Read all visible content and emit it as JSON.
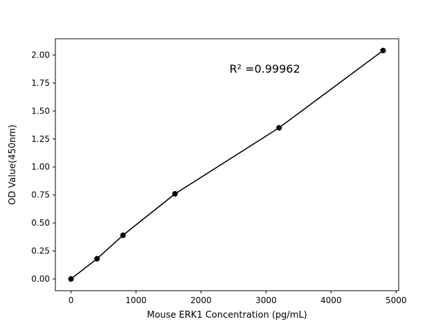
{
  "figure": {
    "background": "#ffffff"
  },
  "chart_data": {
    "type": "scatter",
    "title": "",
    "xlabel": "Mouse ERK1 Concentration (pg/mL)",
    "ylabel": "OD Value(450nm)",
    "x": [
      0,
      400,
      800,
      1600,
      3200,
      4800
    ],
    "y": [
      0.0,
      0.18,
      0.39,
      0.76,
      1.35,
      2.04
    ],
    "xlim": [
      -240,
      5040
    ],
    "ylim": [
      -0.105,
      2.145
    ],
    "xticks": [
      0,
      1000,
      2000,
      3000,
      4000,
      5000
    ],
    "xtick_labels": [
      "0",
      "1000",
      "2000",
      "3000",
      "4000",
      "5000"
    ],
    "yticks": [
      0.0,
      0.25,
      0.5,
      0.75,
      1.0,
      1.25,
      1.5,
      1.75,
      2.0
    ],
    "ytick_labels": [
      "0.00",
      "0.25",
      "0.50",
      "0.75",
      "1.00",
      "1.25",
      "1.50",
      "1.75",
      "2.00"
    ],
    "annotation": {
      "text": "R² =0.99962",
      "xfrac": 0.61,
      "yfrac_from_top": 0.135
    },
    "line_color": "#000000",
    "marker_color": "#000000",
    "marker_size": 4,
    "grid": false,
    "legend": null
  }
}
